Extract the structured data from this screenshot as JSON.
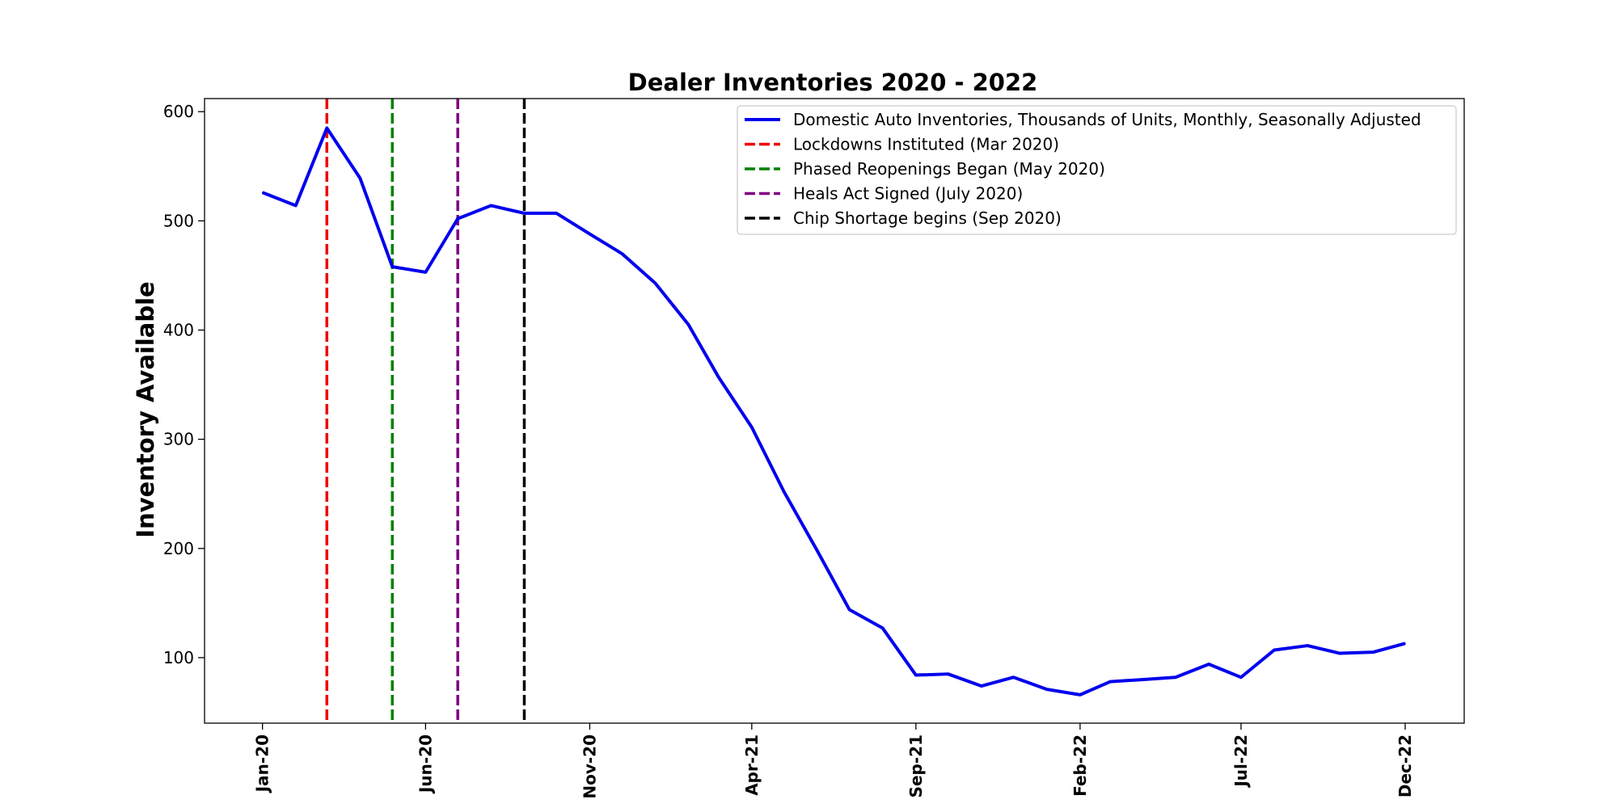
{
  "chart_data": {
    "type": "line",
    "title": "Dealer Inventories 2020 - 2022",
    "xlabel": "",
    "ylabel": "Inventory Available",
    "x": [
      "2020-01",
      "2020-02",
      "2020-03",
      "2020-04",
      "2020-05",
      "2020-06",
      "2020-07",
      "2020-08",
      "2020-09",
      "2020-10",
      "2020-11",
      "2020-12",
      "2021-01",
      "2021-02",
      "2021-03",
      "2021-04",
      "2021-05",
      "2021-06",
      "2021-07",
      "2021-08",
      "2021-09",
      "2021-10",
      "2021-11",
      "2021-12",
      "2022-01",
      "2022-02",
      "2022-03",
      "2022-04",
      "2022-05",
      "2022-06",
      "2022-07",
      "2022-08",
      "2022-09",
      "2022-10",
      "2022-11",
      "2022-12"
    ],
    "series": [
      {
        "name": "Domestic Auto Inventories, Thousands of Units, Monthly, Seasonally Adjusted",
        "color": "#0000ee",
        "values": [
          526,
          514,
          585,
          539,
          458,
          453,
          502,
          514,
          507,
          507,
          488,
          470,
          443,
          405,
          357,
          311,
          252,
          198,
          144,
          127,
          84,
          85,
          74,
          82,
          71,
          66,
          78,
          80,
          82,
          94,
          82,
          107,
          111,
          104,
          105,
          113
        ]
      }
    ],
    "vlines": [
      {
        "x": "2020-03",
        "label": "Lockdowns Instituted (Mar 2020)",
        "color": "#ee0000"
      },
      {
        "x": "2020-05",
        "label": "Phased Reopenings Began (May 2020)",
        "color": "#008000"
      },
      {
        "x": "2020-07",
        "label": "Heals Act Signed (July 2020)",
        "color": "#800080"
      },
      {
        "x": "2020-09",
        "label": "Chip Shortage begins (Sep 2020)",
        "color": "#000000"
      }
    ],
    "ylim": [
      40,
      612
    ],
    "xlim": [
      "2019-11-08",
      "2023-01-25"
    ],
    "yticks": [
      100,
      200,
      300,
      400,
      500,
      600
    ],
    "xticks": [
      {
        "x": "2020-01",
        "label": "Jan-20"
      },
      {
        "x": "2020-06",
        "label": "Jun-20"
      },
      {
        "x": "2020-11",
        "label": "Nov-20"
      },
      {
        "x": "2021-04",
        "label": "Apr-21"
      },
      {
        "x": "2021-09",
        "label": "Sep-21"
      },
      {
        "x": "2022-02",
        "label": "Feb-22"
      },
      {
        "x": "2022-07",
        "label": "Jul-22"
      },
      {
        "x": "2022-12",
        "label": "Dec-22"
      }
    ],
    "grid": false,
    "legend": "top-right"
  }
}
